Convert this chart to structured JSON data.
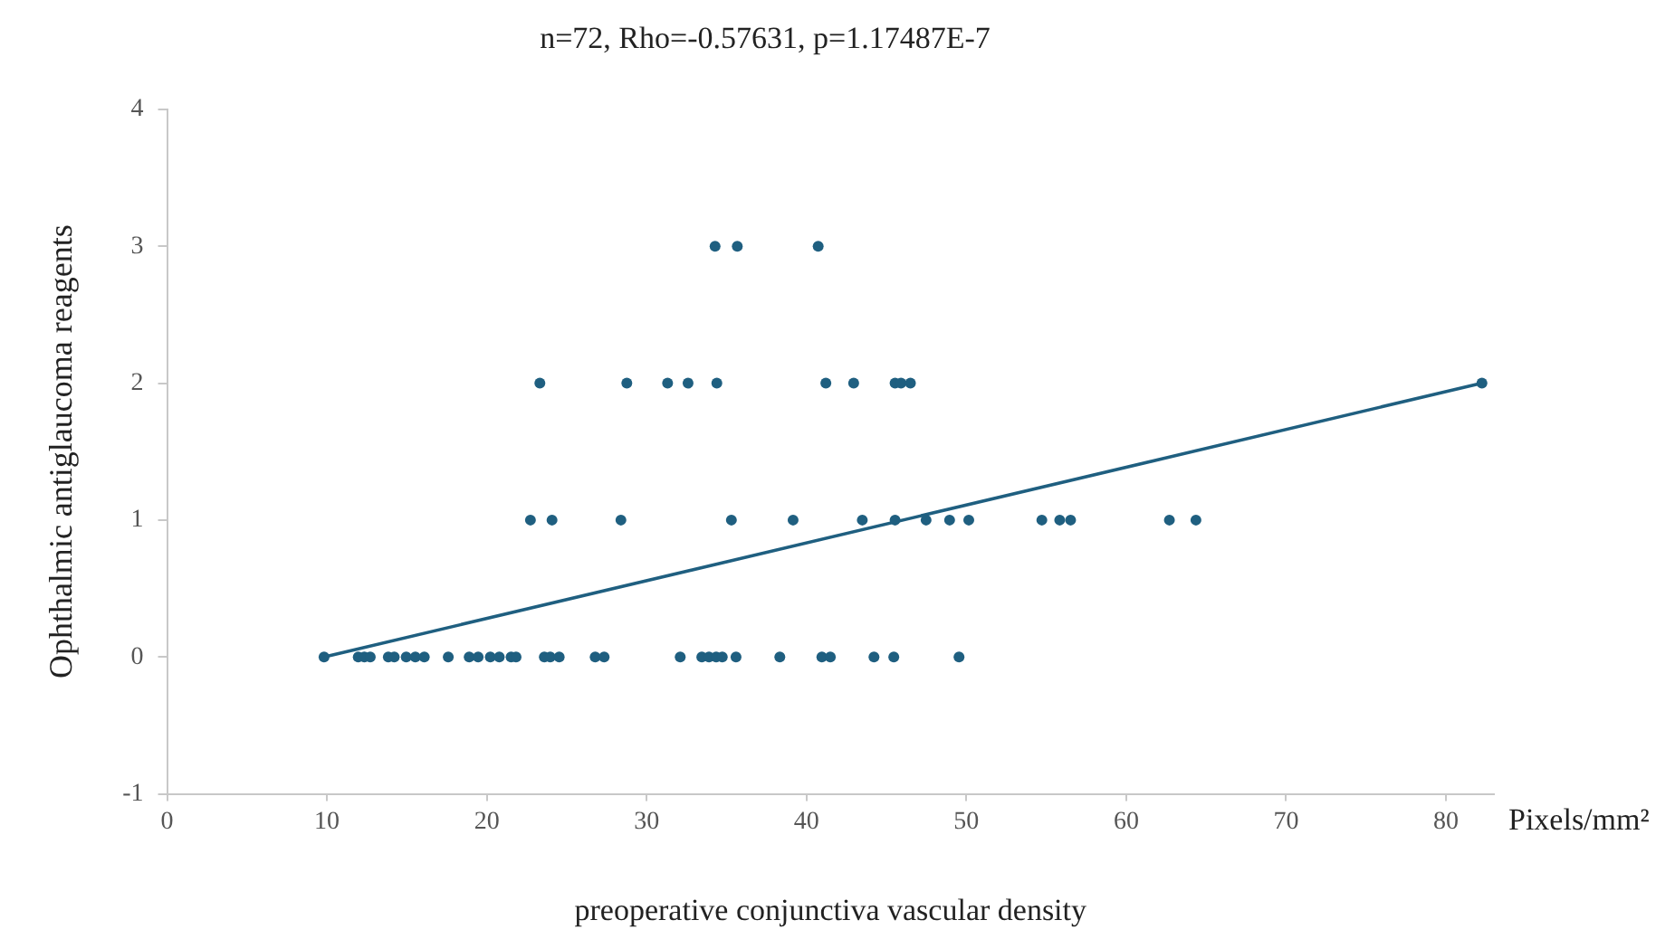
{
  "chart_data": {
    "type": "scatter",
    "title": "n=72, Rho=-0.57631, p=1.17487E-7",
    "xlabel": "preoperative conjunctiva vascular density",
    "ylabel": "Ophthalmic antiglaucoma reagents",
    "annotations": [
      "Pixels/mm²"
    ],
    "xlim": [
      0,
      83
    ],
    "xticks": [
      0,
      10,
      20,
      30,
      40,
      50,
      60,
      70,
      80
    ],
    "ylim": [
      -1,
      4
    ],
    "yticks": [
      -1,
      0,
      1,
      2,
      3,
      4
    ],
    "grid": false,
    "legend": false,
    "marker": "circle",
    "series": [
      {
        "type": "scatter",
        "color": "#1f5f80",
        "x": [
          9.82,
          11.96,
          12.34,
          12.71,
          13.84,
          14.21,
          14.96,
          15.53,
          16.09,
          17.59,
          18.9,
          19.46,
          20.22,
          20.78,
          21.52,
          21.83,
          23.6,
          23.97,
          24.53,
          26.78,
          27.34,
          32.1,
          33.45,
          33.9,
          34.35,
          34.73,
          35.59,
          38.33,
          40.96,
          41.49,
          44.22,
          45.46,
          49.54,
          22.73,
          24.08,
          28.39,
          35.3,
          39.16,
          43.49,
          45.54,
          47.48,
          48.95,
          50.15,
          54.72,
          55.84,
          56.52,
          62.7,
          64.36,
          23.32,
          28.76,
          31.31,
          32.59,
          34.39,
          41.21,
          42.95,
          45.54,
          45.91,
          46.5,
          82.25,
          34.28,
          35.67,
          40.73
        ],
        "values": [
          0,
          0,
          0,
          0,
          0,
          0,
          0,
          0,
          0,
          0,
          0,
          0,
          0,
          0,
          0,
          0,
          0,
          0,
          0,
          0,
          0,
          0,
          0,
          0,
          0,
          0,
          0,
          0,
          0,
          0,
          0,
          0,
          0,
          1,
          1,
          1,
          1,
          1,
          1,
          1,
          1,
          1,
          1,
          1,
          1,
          1,
          1,
          1,
          2,
          2,
          2,
          2,
          2,
          2,
          2,
          2,
          2,
          2,
          2,
          3,
          3,
          3
        ]
      },
      {
        "type": "line",
        "color": "#1f5f80",
        "marker": "none",
        "line_style": "solid",
        "x": [
          9.82,
          82.25
        ],
        "values": [
          0,
          2
        ]
      }
    ]
  }
}
